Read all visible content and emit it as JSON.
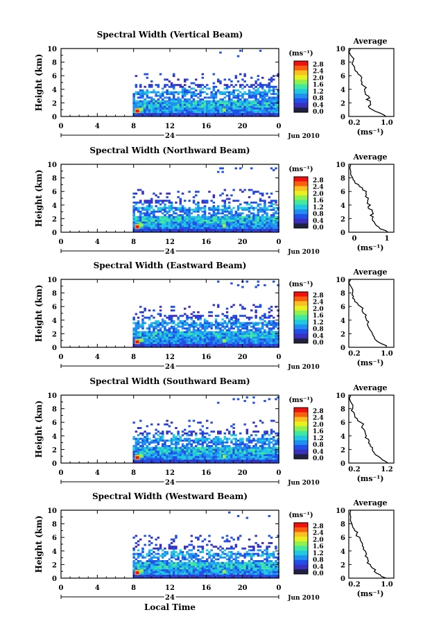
{
  "colorbar": {
    "unit_label": "(ms⁻¹)",
    "ticks": [
      "2.8",
      "2.4",
      "2.0",
      "1.6",
      "1.2",
      "0.8",
      "0.4",
      "0.0"
    ],
    "colors": [
      "#f01010",
      "#f86010",
      "#f8c020",
      "#e8f020",
      "#90f050",
      "#40e8a0",
      "#20c8e0",
      "#2090f0",
      "#2050e8",
      "#3a30c0",
      "#202040"
    ]
  },
  "x_axis": {
    "ticks": [
      "0",
      "4",
      "8",
      "12",
      "16",
      "20",
      "0"
    ],
    "date_marker": "24",
    "date_text": "Jun 2010",
    "xlabel": "Local Time"
  },
  "ylabel": "Height (km)",
  "avg_title": "Average",
  "avg_xlabel": "(ms⁻¹)",
  "chart_data": [
    {
      "type": "heatmap",
      "title": "Spectral Width (Vertical Beam)",
      "xlim": [
        0,
        24
      ],
      "ylim": [
        0,
        10
      ],
      "avg_xticks": [
        "0.2",
        "1.0"
      ],
      "avg_profile": [
        [
          0,
          0.95
        ],
        [
          0.5,
          0.8
        ],
        [
          1,
          0.6
        ],
        [
          1.5,
          0.5
        ],
        [
          2,
          0.55
        ],
        [
          2.5,
          0.45
        ],
        [
          3,
          0.5
        ],
        [
          3.5,
          0.42
        ],
        [
          4,
          0.4
        ],
        [
          4.5,
          0.38
        ],
        [
          5,
          0.34
        ],
        [
          5.5,
          0.32
        ],
        [
          6,
          0.3
        ],
        [
          6.5,
          0.22
        ],
        [
          7,
          0.15
        ],
        [
          7.5,
          0.12
        ],
        [
          8,
          0.1
        ],
        [
          9,
          0.05
        ],
        [
          10,
          0.05
        ]
      ]
    },
    {
      "type": "heatmap",
      "title": "Spectral Width (Northward Beam)",
      "xlim": [
        0,
        24
      ],
      "ylim": [
        0,
        10
      ],
      "avg_xticks": [
        "0",
        "1"
      ],
      "avg_profile": [
        [
          0,
          1.0
        ],
        [
          0.5,
          0.8
        ],
        [
          1,
          0.7
        ],
        [
          1.5,
          0.65
        ],
        [
          2,
          0.6
        ],
        [
          2.5,
          0.55
        ],
        [
          3,
          0.6
        ],
        [
          3.5,
          0.5
        ],
        [
          4,
          0.55
        ],
        [
          4.5,
          0.48
        ],
        [
          5,
          0.5
        ],
        [
          5.5,
          0.45
        ],
        [
          6,
          0.45
        ],
        [
          6.5,
          0.35
        ],
        [
          7,
          0.25
        ],
        [
          7.5,
          0.15
        ],
        [
          8,
          0.1
        ],
        [
          9,
          0.05
        ],
        [
          10,
          0.05
        ]
      ]
    },
    {
      "type": "heatmap",
      "title": "Spectral Width (Eastward Beam)",
      "xlim": [
        0,
        24
      ],
      "ylim": [
        0,
        10
      ],
      "avg_xticks": [
        "0.2",
        "1.0"
      ],
      "avg_profile": [
        [
          0,
          0.95
        ],
        [
          0.5,
          0.85
        ],
        [
          1,
          0.7
        ],
        [
          1.5,
          0.65
        ],
        [
          2,
          0.6
        ],
        [
          2.5,
          0.55
        ],
        [
          3,
          0.5
        ],
        [
          3.5,
          0.48
        ],
        [
          4,
          0.45
        ],
        [
          4.5,
          0.42
        ],
        [
          5,
          0.38
        ],
        [
          5.5,
          0.34
        ],
        [
          6,
          0.3
        ],
        [
          6.5,
          0.22
        ],
        [
          7,
          0.15
        ],
        [
          7.5,
          0.12
        ],
        [
          8,
          0.1
        ],
        [
          9,
          0.05
        ],
        [
          10,
          0.05
        ]
      ]
    },
    {
      "type": "heatmap",
      "title": "Spectral Width (Southward Beam)",
      "xlim": [
        0,
        24
      ],
      "ylim": [
        0,
        10
      ],
      "avg_xticks": [
        "0.2",
        "1.2"
      ],
      "avg_profile": [
        [
          0,
          1.0
        ],
        [
          0.5,
          0.85
        ],
        [
          1,
          0.75
        ],
        [
          1.5,
          0.65
        ],
        [
          2,
          0.6
        ],
        [
          2.5,
          0.55
        ],
        [
          3,
          0.5
        ],
        [
          3.5,
          0.5
        ],
        [
          4,
          0.45
        ],
        [
          4.5,
          0.42
        ],
        [
          5,
          0.38
        ],
        [
          5.5,
          0.35
        ],
        [
          6,
          0.3
        ],
        [
          6.5,
          0.22
        ],
        [
          7,
          0.15
        ],
        [
          7.5,
          0.12
        ],
        [
          8,
          0.1
        ],
        [
          9,
          0.05
        ],
        [
          10,
          0.05
        ]
      ]
    },
    {
      "type": "heatmap",
      "title": "Spectral Width (Westward Beam)",
      "xlim": [
        0,
        24
      ],
      "ylim": [
        0,
        10
      ],
      "avg_xticks": [
        "0.2",
        "1.0"
      ],
      "avg_profile": [
        [
          0,
          0.95
        ],
        [
          0.5,
          0.8
        ],
        [
          1,
          0.65
        ],
        [
          1.5,
          0.6
        ],
        [
          2,
          0.55
        ],
        [
          2.5,
          0.5
        ],
        [
          3,
          0.48
        ],
        [
          3.5,
          0.45
        ],
        [
          4,
          0.42
        ],
        [
          4.5,
          0.38
        ],
        [
          5,
          0.35
        ],
        [
          5.5,
          0.3
        ],
        [
          6,
          0.28
        ],
        [
          6.5,
          0.2
        ],
        [
          7,
          0.15
        ],
        [
          7.5,
          0.1
        ],
        [
          8,
          0.08
        ],
        [
          9,
          0.05
        ],
        [
          10,
          0.05
        ]
      ]
    }
  ]
}
